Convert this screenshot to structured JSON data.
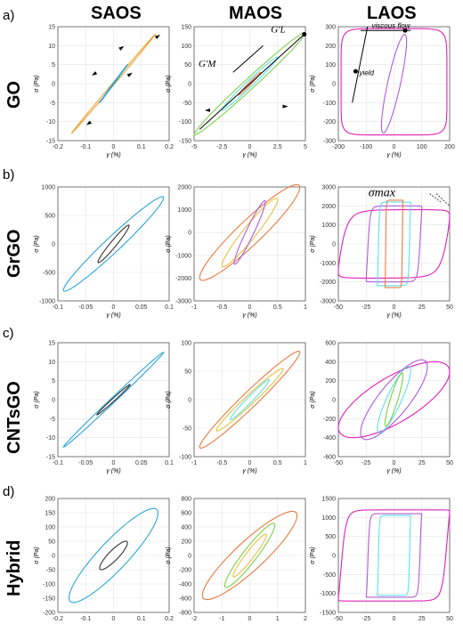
{
  "column_headers": [
    "SAOS",
    "MAOS",
    "LAOS"
  ],
  "rows": [
    {
      "letter": "a)",
      "name": "GO"
    },
    {
      "letter": "b)",
      "name": "GrGO"
    },
    {
      "letter": "c)",
      "name": "CNTsGO"
    },
    {
      "letter": "d)",
      "name": "Hybrid"
    }
  ],
  "annotations": {
    "go_maos_gm": "G'M",
    "go_maos_gl": "G'L",
    "go_laos_viscous": "viscous flow",
    "go_laos_yield": "yield",
    "grgo_laos_sigma": "σmax"
  },
  "colors": {
    "orange": "#f0a030",
    "blue": "#2aa5d8",
    "dark": "#333333",
    "green": "#7ccf4a",
    "salmon": "#e87a40",
    "cyan": "#5ee0e8",
    "purple": "#b05bd8",
    "magenta": "#e020b8",
    "yellow": "#e8c040"
  },
  "chart_data": [
    {
      "id": "go-saos",
      "type": "line",
      "xlabel": "γ (%)",
      "ylabel": "σ (Pa)",
      "xlim": [
        -0.2,
        0.2
      ],
      "ylim": [
        -15,
        15
      ],
      "xticks": [
        "-0.2",
        "-0.1",
        "0",
        "0.1",
        "0.2"
      ],
      "yticks": [
        "15",
        "10",
        "5",
        "0",
        "-5",
        "-10",
        "-15"
      ],
      "series": [
        {
          "color": "orange",
          "amp_x": 0.15,
          "amp_y": 13,
          "width": 0.03
        },
        {
          "color": "blue",
          "amp_x": 0.05,
          "amp_y": 5,
          "width": 0.04
        }
      ]
    },
    {
      "id": "go-maos",
      "type": "line",
      "xlabel": "γ (%)",
      "ylabel": "σ (Pa)",
      "xlim": [
        -5,
        5
      ],
      "ylim": [
        -150,
        150
      ],
      "xticks": [
        "-5",
        "-2.5",
        "0",
        "2.5",
        "5"
      ],
      "yticks": [
        "150",
        "100",
        "50",
        "0",
        "-50",
        "-100",
        "-150"
      ],
      "series": [
        {
          "color": "green",
          "amp_x": 5,
          "amp_y": 135,
          "width": 0.14
        },
        {
          "color": "cyan",
          "amp_x": 2.5,
          "amp_y": 70,
          "width": 0.16
        },
        {
          "color": "salmon",
          "amp_x": 1,
          "amp_y": 30,
          "width": 0.15
        }
      ]
    },
    {
      "id": "go-laos",
      "type": "line",
      "xlabel": "γ (%)",
      "ylabel": "σ (Pa)",
      "xlim": [
        -200,
        200
      ],
      "ylim": [
        -300,
        300
      ],
      "xticks": [
        "-200",
        "-100",
        "0",
        "100",
        "200"
      ],
      "yticks": [
        "300",
        "200",
        "100",
        "0",
        "-100",
        "-200",
        "-300"
      ],
      "series": [
        {
          "color": "magenta",
          "shape": "rect",
          "amp_x": 190,
          "amp_y": 290,
          "lo_y": -270
        },
        {
          "color": "purple",
          "amp_x": 45,
          "amp_y": 260,
          "width": 0.55
        }
      ]
    },
    {
      "id": "grgo-saos",
      "type": "line",
      "xlabel": "γ (%)",
      "ylabel": "σ (Pa)",
      "xlim": [
        -0.1,
        0.1
      ],
      "ylim": [
        -1000,
        1000
      ],
      "xticks": [
        "-0.1",
        "-0.05",
        "0",
        "0.05",
        "0.1"
      ],
      "yticks": [
        "1000",
        "500",
        "0",
        "-500",
        "-1000"
      ],
      "series": [
        {
          "color": "blue",
          "amp_x": 0.09,
          "amp_y": 830,
          "width": 0.22
        },
        {
          "color": "dark",
          "amp_x": 0.028,
          "amp_y": 330,
          "width": 0.25
        }
      ]
    },
    {
      "id": "grgo-maos",
      "type": "line",
      "xlabel": "γ (%)",
      "ylabel": "σ (Pa)",
      "xlim": [
        -1,
        1
      ],
      "ylim": [
        -3000,
        2000
      ],
      "xticks": [
        "-1",
        "-0.5",
        "0",
        "0.5",
        "1"
      ],
      "yticks": [
        "2000",
        "1000",
        "0",
        "-1000",
        "-2000",
        "-3000"
      ],
      "series": [
        {
          "color": "salmon",
          "amp_x": 0.9,
          "amp_y": 2100,
          "width": 0.35
        },
        {
          "color": "yellow",
          "amp_x": 0.5,
          "amp_y": 1500,
          "width": 0.3
        },
        {
          "color": "purple",
          "amp_x": 0.28,
          "amp_y": 1400,
          "width": 0.28
        }
      ]
    },
    {
      "id": "grgo-laos",
      "type": "line",
      "xlabel": "γ (%)",
      "ylabel": "σ (Pa)",
      "xlim": [
        -50,
        50
      ],
      "ylim": [
        -3000,
        3000
      ],
      "xticks": [
        "-50",
        "-25",
        "0",
        "25",
        "50"
      ],
      "yticks": [
        "3000",
        "2000",
        "1000",
        "0",
        "-1000",
        "-2000",
        "-3000"
      ],
      "series": [
        {
          "color": "magenta",
          "shape": "yield",
          "amp_x": 50,
          "amp_y": 1800,
          "sharp": 3
        },
        {
          "color": "purple",
          "shape": "yield",
          "amp_x": 25,
          "amp_y": 2000,
          "sharp": 5
        },
        {
          "color": "cyan",
          "shape": "yield",
          "amp_x": 15,
          "amp_y": 2200,
          "sharp": 6
        },
        {
          "color": "salmon",
          "shape": "yield",
          "amp_x": 8,
          "amp_y": 2300,
          "sharp": 7
        }
      ]
    },
    {
      "id": "cnt-saos",
      "type": "line",
      "xlabel": "γ (%)",
      "ylabel": "σ (Pa)",
      "xlim": [
        -0.1,
        0.1
      ],
      "ylim": [
        -15,
        15
      ],
      "xticks": [
        "-0.1",
        "-0.05",
        "0",
        "0.05",
        "0.1"
      ],
      "yticks": [
        "15",
        "10",
        "5",
        "0",
        "-5",
        "-10",
        "-15"
      ],
      "series": [
        {
          "color": "blue",
          "amp_x": 0.09,
          "amp_y": 12.5,
          "width": 0.07
        },
        {
          "color": "dark",
          "amp_x": 0.03,
          "amp_y": 4,
          "width": 0.12
        }
      ]
    },
    {
      "id": "cnt-maos",
      "type": "line",
      "xlabel": "γ (%)",
      "ylabel": "σ (Pa)",
      "xlim": [
        -1,
        1
      ],
      "ylim": [
        -100,
        100
      ],
      "xticks": [
        "-1",
        "-0.5",
        "0",
        "0.5",
        "1"
      ],
      "yticks": [
        "100",
        "50",
        "0",
        "-50",
        "-100"
      ],
      "series": [
        {
          "color": "salmon",
          "amp_x": 0.9,
          "amp_y": 85,
          "width": 0.22
        },
        {
          "color": "yellow",
          "amp_x": 0.6,
          "amp_y": 55,
          "width": 0.2
        },
        {
          "color": "cyan",
          "amp_x": 0.35,
          "amp_y": 35,
          "width": 0.2
        }
      ]
    },
    {
      "id": "cnt-laos",
      "type": "line",
      "xlabel": "γ (%)",
      "ylabel": "σ (Pa)",
      "xlim": [
        -50,
        50
      ],
      "ylim": [
        -600,
        600
      ],
      "xticks": [
        "-50",
        "-25",
        "0",
        "25",
        "50"
      ],
      "yticks": [
        "600",
        "400",
        "200",
        "0",
        "-200",
        "-400",
        "-600"
      ],
      "series": [
        {
          "color": "magenta",
          "amp_x": 50,
          "amp_y": 400,
          "width": 0.75
        },
        {
          "color": "purple",
          "amp_x": 30,
          "amp_y": 420,
          "width": 0.6
        },
        {
          "color": "cyan",
          "amp_x": 15,
          "amp_y": 350,
          "width": 0.5
        },
        {
          "color": "green",
          "amp_x": 8,
          "amp_y": 280,
          "width": 0.45
        }
      ]
    },
    {
      "id": "hyb-saos",
      "type": "line",
      "xlabel": "γ (%)",
      "ylabel": "σ (Pa)",
      "xlim": [
        -0.2,
        0.2
      ],
      "ylim": [
        -200,
        200
      ],
      "xticks": [
        "-0.2",
        "-0.1",
        "0",
        "0.1",
        "0.2"
      ],
      "yticks": [
        "200",
        "150",
        "100",
        "50",
        "0",
        "-50",
        "-100",
        "-150",
        "-200"
      ],
      "series": [
        {
          "color": "blue",
          "amp_x": 0.16,
          "amp_y": 165,
          "width": 0.45
        },
        {
          "color": "dark",
          "amp_x": 0.05,
          "amp_y": 50,
          "width": 0.5
        }
      ]
    },
    {
      "id": "hyb-maos",
      "type": "line",
      "xlabel": "γ (%)",
      "ylabel": "σ (Pa)",
      "xlim": [
        -2,
        2
      ],
      "ylim": [
        -800,
        800
      ],
      "xticks": [
        "-2",
        "-1",
        "0",
        "1",
        "2"
      ],
      "yticks": [
        "800",
        "600",
        "400",
        "200",
        "0",
        "-200",
        "-400",
        "-600",
        "-800"
      ],
      "series": [
        {
          "color": "salmon",
          "amp_x": 1.7,
          "amp_y": 620,
          "width": 0.45
        },
        {
          "color": "green",
          "amp_x": 0.9,
          "amp_y": 450,
          "width": 0.35
        },
        {
          "color": "yellow",
          "amp_x": 0.6,
          "amp_y": 300,
          "width": 0.3
        }
      ]
    },
    {
      "id": "hyb-laos",
      "type": "line",
      "xlabel": "γ (%)",
      "ylabel": "σ (Pa)",
      "xlim": [
        -50,
        50
      ],
      "ylim": [
        -1500,
        1500
      ],
      "xticks": [
        "-50",
        "-25",
        "0",
        "25",
        "50"
      ],
      "yticks": [
        "1500",
        "1000",
        "500",
        "0",
        "-500",
        "-1000",
        "-1500"
      ],
      "series": [
        {
          "color": "magenta",
          "shape": "yield",
          "amp_x": 50,
          "amp_y": 1200,
          "sharp": 5
        },
        {
          "color": "purple",
          "shape": "yield",
          "amp_x": 25,
          "amp_y": 1100,
          "sharp": 7
        },
        {
          "color": "cyan",
          "shape": "yield",
          "amp_x": 15,
          "amp_y": 1050,
          "sharp": 7
        }
      ]
    }
  ]
}
